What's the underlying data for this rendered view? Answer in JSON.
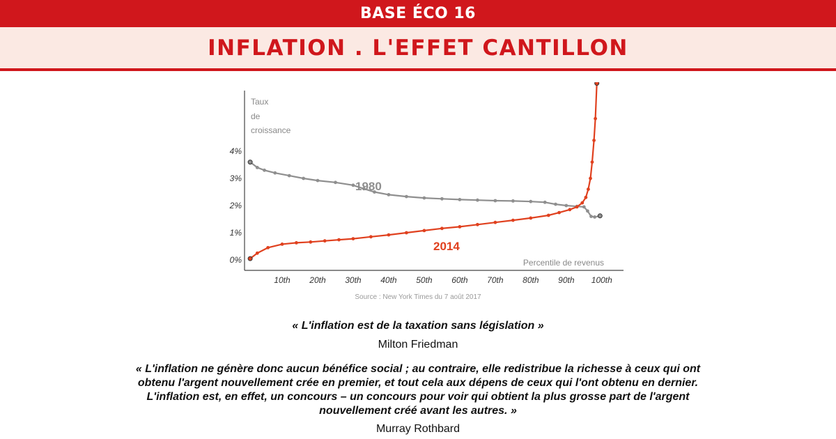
{
  "header": {
    "series_label": "BASE ÉCO 16",
    "title": "INFLATION . L'EFFET CANTILLON"
  },
  "chart_data": {
    "type": "line",
    "ylabel_lines": [
      "Taux",
      "de",
      "croissance"
    ],
    "xlabel": "Percentile de revenus",
    "y_ticks": [
      "0%",
      "1%",
      "2%",
      "3%",
      "4%"
    ],
    "y_tick_values": [
      0,
      1,
      2,
      3,
      4
    ],
    "x_ticks": [
      "10th",
      "20th",
      "30th",
      "40th",
      "50th",
      "60th",
      "70th",
      "80th",
      "90th",
      "100th"
    ],
    "x_tick_values": [
      10,
      20,
      30,
      40,
      50,
      60,
      70,
      80,
      90,
      100
    ],
    "xlim": [
      0,
      102
    ],
    "ylim": [
      0,
      6.5
    ],
    "grid": false,
    "series": [
      {
        "name": "1980",
        "color": "#8f8f8f",
        "points": [
          [
            1,
            3.6
          ],
          [
            3,
            3.4
          ],
          [
            5,
            3.3
          ],
          [
            8,
            3.2
          ],
          [
            12,
            3.1
          ],
          [
            16,
            3.0
          ],
          [
            20,
            2.92
          ],
          [
            25,
            2.85
          ],
          [
            30,
            2.75
          ],
          [
            33,
            2.62
          ],
          [
            36,
            2.5
          ],
          [
            40,
            2.4
          ],
          [
            45,
            2.33
          ],
          [
            50,
            2.28
          ],
          [
            55,
            2.25
          ],
          [
            60,
            2.22
          ],
          [
            65,
            2.2
          ],
          [
            70,
            2.18
          ],
          [
            75,
            2.17
          ],
          [
            80,
            2.15
          ],
          [
            84,
            2.12
          ],
          [
            87,
            2.05
          ],
          [
            90,
            2.0
          ],
          [
            93,
            1.97
          ],
          [
            95,
            1.95
          ],
          [
            96,
            1.8
          ],
          [
            97,
            1.6
          ],
          [
            98,
            1.58
          ],
          [
            99.5,
            1.62
          ]
        ]
      },
      {
        "name": "2014",
        "color": "#e0411f",
        "points": [
          [
            1,
            0.05
          ],
          [
            3,
            0.25
          ],
          [
            6,
            0.45
          ],
          [
            10,
            0.58
          ],
          [
            14,
            0.63
          ],
          [
            18,
            0.66
          ],
          [
            22,
            0.7
          ],
          [
            26,
            0.74
          ],
          [
            30,
            0.78
          ],
          [
            35,
            0.85
          ],
          [
            40,
            0.92
          ],
          [
            45,
            1.0
          ],
          [
            50,
            1.08
          ],
          [
            55,
            1.16
          ],
          [
            60,
            1.22
          ],
          [
            65,
            1.3
          ],
          [
            70,
            1.38
          ],
          [
            75,
            1.46
          ],
          [
            80,
            1.54
          ],
          [
            85,
            1.64
          ],
          [
            88,
            1.74
          ],
          [
            91,
            1.85
          ],
          [
            93,
            1.95
          ],
          [
            94.5,
            2.1
          ],
          [
            95.5,
            2.3
          ],
          [
            96.2,
            2.6
          ],
          [
            96.8,
            3.0
          ],
          [
            97.3,
            3.6
          ],
          [
            97.8,
            4.4
          ],
          [
            98.2,
            5.2
          ],
          [
            98.6,
            6.5
          ]
        ]
      }
    ],
    "annotations": {
      "s1980": "1980",
      "s2014": "2014"
    }
  },
  "source": "Source : New York Times du 7 août 2017",
  "quote1": {
    "text": "« L'inflation est de la taxation sans législation »",
    "author": "Milton Friedman"
  },
  "quote2": {
    "text": "« L'inflation ne génère donc aucun bénéfice social ; au contraire, elle redistribue la richesse à ceux qui ont obtenu l'argent nouvellement crée en premier, et tout cela aux dépens de ceux qui l'ont obtenu en dernier. L'inflation est, en effet, un concours – un concours pour voir qui obtient la plus grosse part de l'argent nouvellement créé avant les autres. »",
    "author": "Murray Rothbard"
  }
}
